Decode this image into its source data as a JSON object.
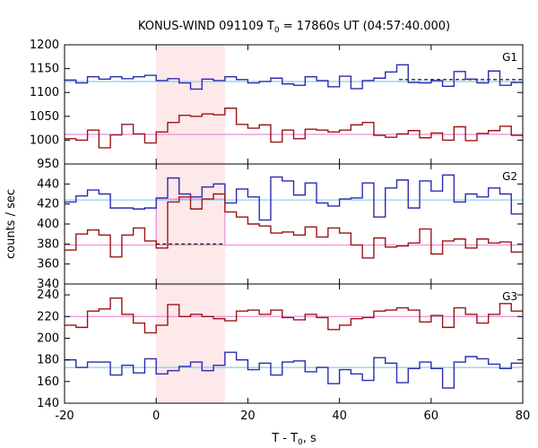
{
  "chart_data": {
    "type": "line",
    "title": {
      "prefix": "KONUS-WIND 091109 T",
      "sub": "0",
      "suffix": " = 17860s UT (04:57:40.000)"
    },
    "xlabel": {
      "prefix": "T - T",
      "sub": "0",
      "suffix": ", s"
    },
    "ylabel": "counts / sec",
    "xlim": [
      -20,
      80
    ],
    "xticks": [
      -20,
      0,
      20,
      40,
      60,
      80
    ],
    "highlight": {
      "x0": 0,
      "x1": 15,
      "color": "#fde8ea"
    },
    "colors": {
      "blue": "#2b2bb0",
      "red": "#9b1515",
      "cyan": "#87ceeb",
      "pink": "#e98fd7"
    },
    "x": [
      -20,
      -17.5,
      -15,
      -12.5,
      -10,
      -7.5,
      -5,
      -2.5,
      0,
      2.5,
      5,
      7.5,
      10,
      12.5,
      15,
      17.5,
      20,
      22.5,
      25,
      27.5,
      30,
      32.5,
      35,
      37.5,
      40,
      42.5,
      45,
      47.5,
      50,
      52.5,
      55,
      57.5,
      60,
      62.5,
      65,
      67.5,
      70,
      72.5,
      75,
      77.5
    ],
    "panels": [
      {
        "label": "G1",
        "ylim": [
          950,
          1200
        ],
        "yticks": [
          950,
          1000,
          1050,
          1100,
          1150,
          1200
        ],
        "show_bottom_ticklabel": true,
        "series": [
          {
            "color": "blue",
            "values": [
              1126,
              1120,
              1133,
              1128,
              1133,
              1129,
              1133,
              1136,
              1125,
              1129,
              1120,
              1107,
              1128,
              1125,
              1133,
              1127,
              1120,
              1123,
              1130,
              1118,
              1115,
              1133,
              1125,
              1112,
              1134,
              1108,
              1125,
              1130,
              1143,
              1158,
              1121,
              1120,
              1125,
              1113,
              1144,
              1128,
              1120,
              1145,
              1115,
              1121
            ]
          },
          {
            "color": "red",
            "values": [
              1003,
              1000,
              1021,
              984,
              1011,
              1033,
              1013,
              994,
              1017,
              1037,
              1052,
              1050,
              1055,
              1053,
              1067,
              1033,
              1025,
              1032,
              996,
              1021,
              1003,
              1023,
              1021,
              1017,
              1021,
              1032,
              1037,
              1010,
              1006,
              1013,
              1020,
              1005,
              1015,
              1000,
              1028,
              999,
              1014,
              1020,
              1029,
              1010
            ]
          }
        ],
        "refs": [
          {
            "color": "cyan",
            "value": 1123
          },
          {
            "color": "pink",
            "value": 1012
          }
        ],
        "dashes": [
          {
            "value": 1127,
            "x0": 53,
            "x1": 80
          }
        ]
      },
      {
        "label": "G2",
        "ylim": [
          340,
          460
        ],
        "yticks": [
          340,
          360,
          380,
          400,
          420,
          440
        ],
        "show_bottom_ticklabel": true,
        "series": [
          {
            "color": "blue",
            "values": [
              422,
              428,
              434,
              430,
              416,
              416,
              415,
              416,
              426,
              446,
              430,
              427,
              437,
              440,
              421,
              435,
              427,
              404,
              447,
              443,
              429,
              441,
              421,
              418,
              425,
              426,
              441,
              407,
              436,
              444,
              416,
              443,
              433,
              449,
              422,
              430,
              427,
              436,
              430,
              410
            ]
          },
          {
            "color": "red",
            "values": [
              374,
              390,
              394,
              389,
              367,
              389,
              396,
              383,
              376,
              422,
              427,
              415,
              425,
              430,
              412,
              407,
              400,
              398,
              391,
              392,
              389,
              397,
              387,
              396,
              391,
              379,
              366,
              386,
              377,
              378,
              381,
              395,
              370,
              383,
              385,
              376,
              385,
              381,
              382,
              372
            ]
          }
        ],
        "refs": [
          {
            "color": "cyan",
            "value": 424
          },
          {
            "color": "pink",
            "value": 379
          }
        ],
        "pink_step": {
          "x0": 0,
          "x1": 15,
          "value": 425
        },
        "dashes": [
          {
            "value": 380,
            "x0": 0,
            "x1": 15
          }
        ]
      },
      {
        "label": "G3",
        "ylim": [
          140,
          250
        ],
        "yticks": [
          140,
          160,
          180,
          200,
          220,
          240
        ],
        "show_bottom_ticklabel": true,
        "series": [
          {
            "color": "red",
            "values": [
              212,
              210,
              225,
              227,
              237,
              222,
              214,
              205,
              212,
              231,
              220,
              222,
              220,
              218,
              216,
              225,
              226,
              222,
              226,
              219,
              217,
              222,
              219,
              208,
              212,
              218,
              219,
              225,
              226,
              228,
              226,
              215,
              221,
              210,
              228,
              222,
              214,
              222,
              232,
              225
            ]
          },
          {
            "color": "blue",
            "values": [
              180,
              173,
              178,
              178,
              166,
              175,
              168,
              181,
              167,
              170,
              174,
              178,
              170,
              175,
              187,
              180,
              171,
              177,
              166,
              178,
              179,
              169,
              173,
              158,
              171,
              167,
              161,
              182,
              177,
              159,
              172,
              178,
              172,
              154,
              178,
              183,
              181,
              176,
              172,
              177
            ]
          }
        ],
        "refs": [
          {
            "color": "pink",
            "value": 220
          },
          {
            "color": "cyan",
            "value": 173
          }
        ]
      }
    ]
  }
}
